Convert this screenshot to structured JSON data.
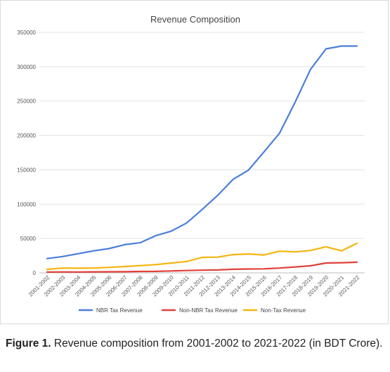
{
  "chart_data": {
    "type": "line",
    "title": "Revenue Composition",
    "xlabel": "",
    "ylabel": "",
    "ylim": [
      0,
      350000
    ],
    "y_ticks": [
      0,
      50000,
      100000,
      150000,
      200000,
      250000,
      300000,
      350000
    ],
    "grid": "horizontal",
    "legend_position": "bottom",
    "categories": [
      "2001-2002",
      "2002-2003",
      "2003-2004",
      "2004-2005",
      "2005-2006",
      "2006-2007",
      "2007-2008",
      "2008-2009",
      "2009-2010",
      "2010-2011",
      "2011-2012",
      "2012-2013",
      "2013-2014",
      "2014-2015",
      "2015-2016",
      "2016-2017",
      "2017-2018",
      "2018-2019",
      "2019-2020",
      "2020-2021",
      "2021-2022"
    ],
    "series": [
      {
        "name": "NBR Tax Revenue",
        "color": "#4a7fdc",
        "values": [
          20800,
          23700,
          27800,
          32000,
          35300,
          41000,
          43800,
          54000,
          60600,
          72500,
          92000,
          112500,
          136000,
          149500,
          176000,
          203000,
          248000,
          296000,
          326000,
          330000,
          330000
        ]
      },
      {
        "name": "Non-NBR Tax Revenue",
        "color": "#e0413a",
        "values": [
          1100,
          1300,
          1200,
          1400,
          1500,
          1600,
          2000,
          2200,
          2800,
          3400,
          3900,
          4200,
          5200,
          5600,
          5800,
          7000,
          8600,
          10200,
          14300,
          14700,
          15500
        ]
      },
      {
        "name": "Non-Tax Revenue",
        "color": "#f6b40e",
        "values": [
          5000,
          7000,
          6800,
          7000,
          8000,
          9200,
          10500,
          12000,
          14200,
          16500,
          22500,
          22800,
          26500,
          27500,
          26000,
          31500,
          30500,
          32500,
          38000,
          32000,
          43000
        ]
      }
    ]
  },
  "caption": {
    "label": "Figure 1.",
    "text": " Revenue composition from 2001-2002 to 2021-2022 (in BDT Crore)."
  }
}
